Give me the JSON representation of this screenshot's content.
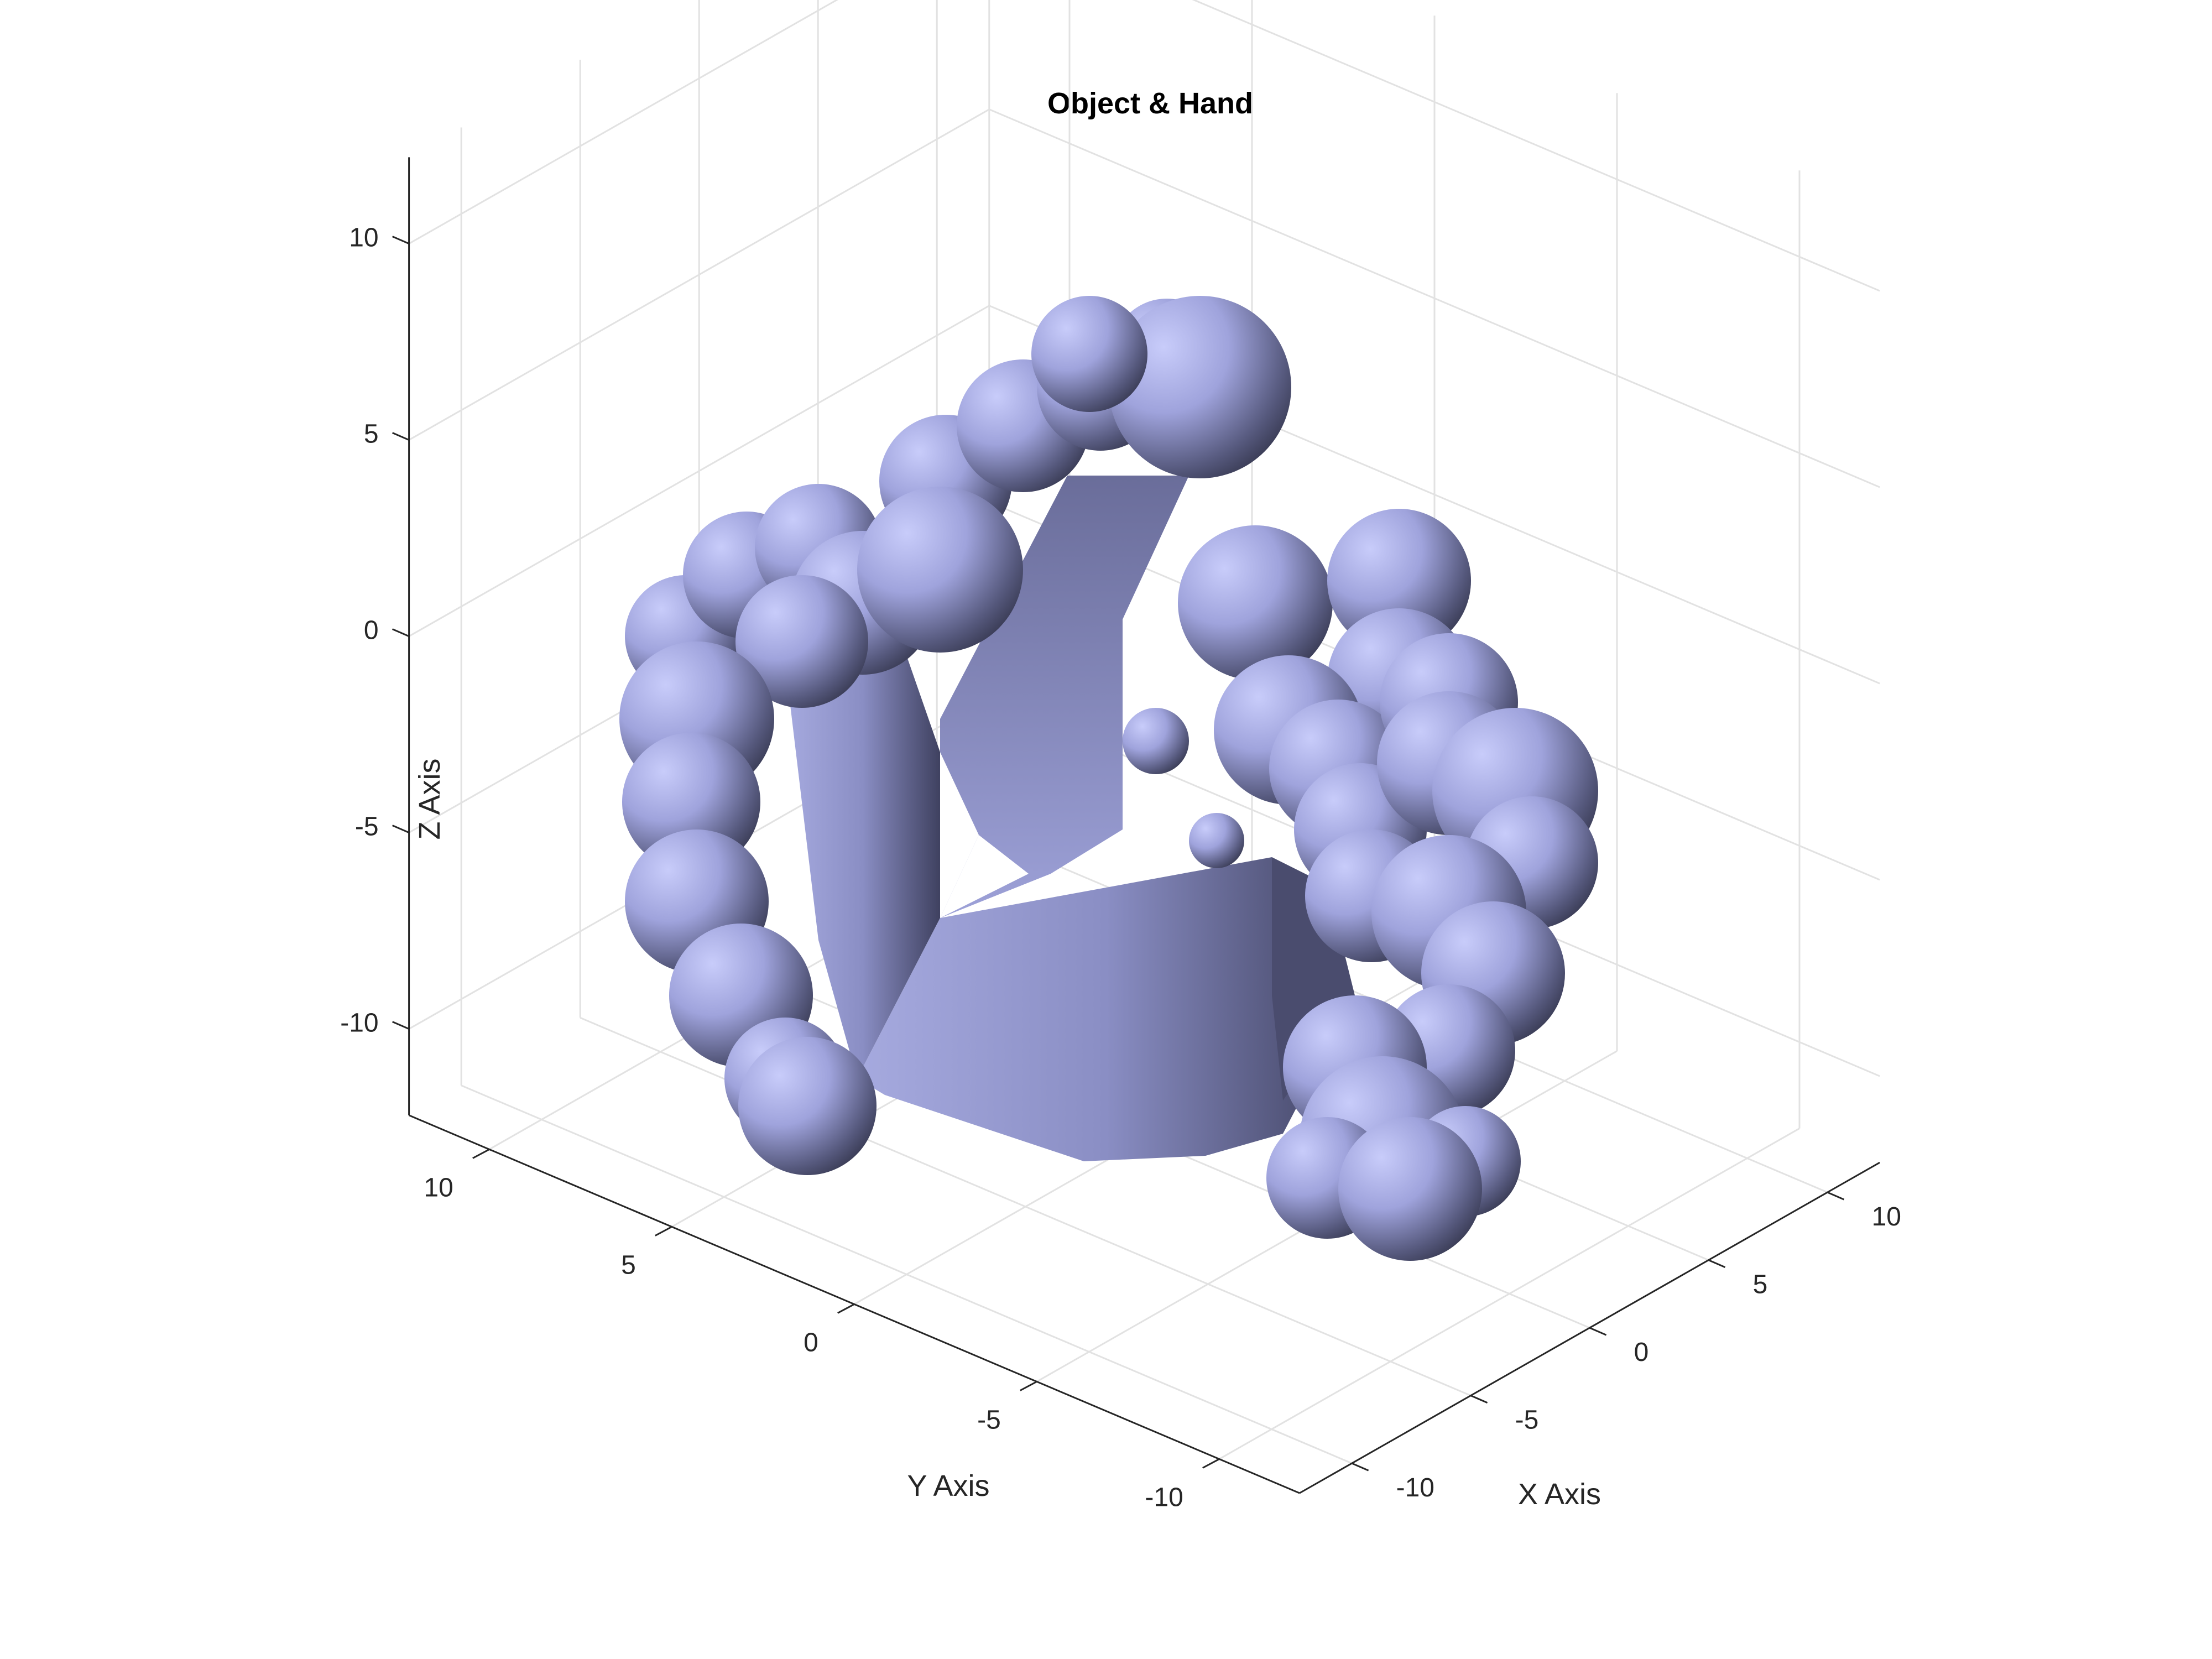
{
  "chart_data": {
    "type": "3d-surface",
    "title": "Object & Hand",
    "xlabel": "X Axis",
    "ylabel": "Y Axis",
    "zlabel": "Z Axis",
    "x_ticks": [
      "-10",
      "-5",
      "0",
      "5",
      "10"
    ],
    "y_ticks": [
      "-10",
      "-5",
      "0",
      "5",
      "10"
    ],
    "z_ticks": [
      "-10",
      "-5",
      "0",
      "5",
      "10"
    ],
    "xlim": [
      -10,
      10
    ],
    "ylim": [
      -10,
      10
    ],
    "zlim": [
      -10,
      10
    ],
    "grid": true,
    "surface_color": "#b4b8f0"
  }
}
